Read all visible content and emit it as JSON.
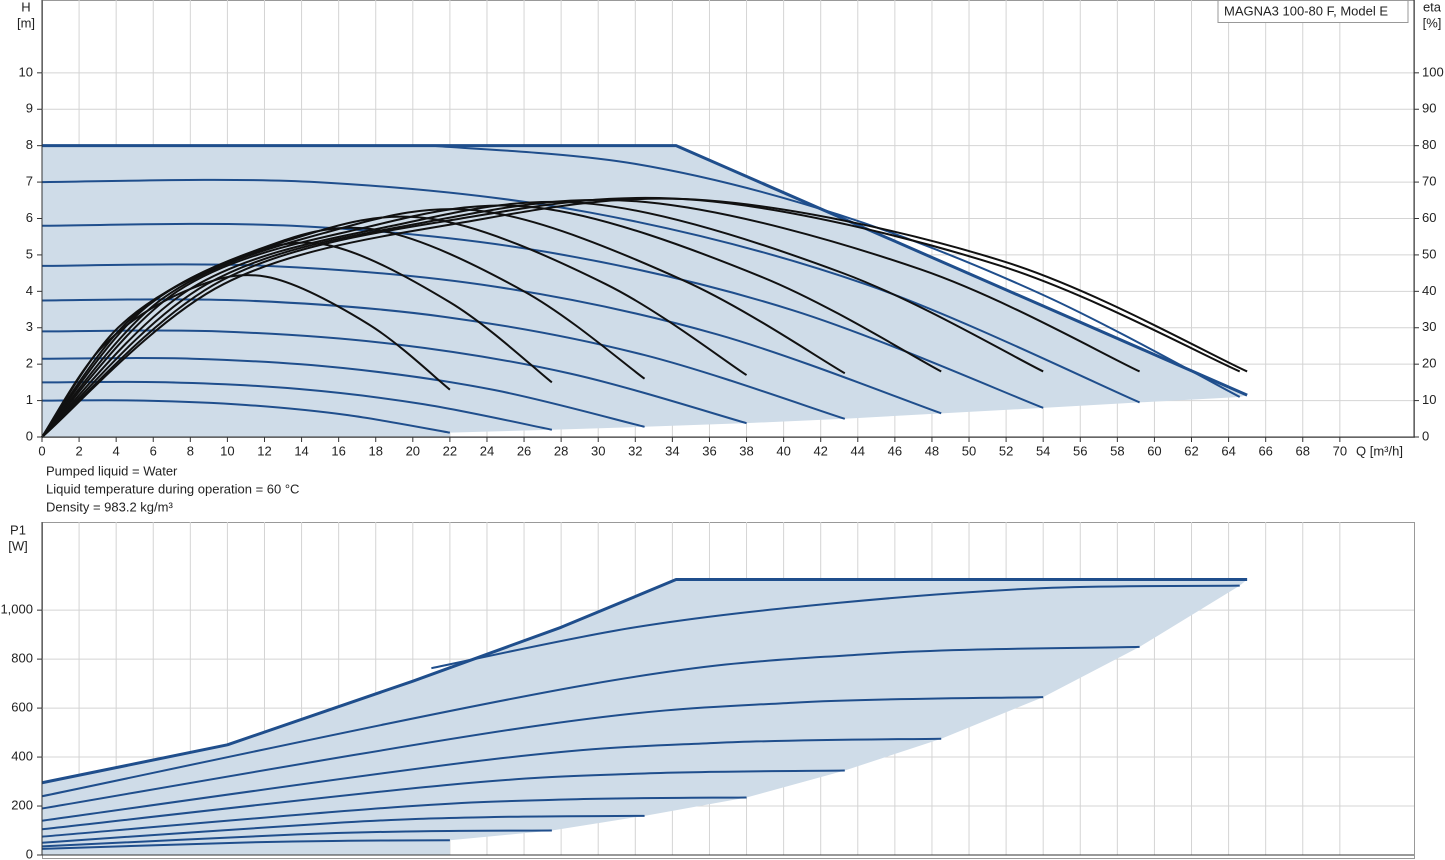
{
  "chart_data": [
    {
      "type": "line",
      "title": "MAGNA3 100-80 F, Model E",
      "ylabel": "H",
      "yunit": "[m]",
      "y2label": "eta",
      "y2unit": "[%]",
      "xlabel": "Q [m³/h]",
      "notes": [
        "Pumped liquid = Water",
        "Liquid temperature during operation = 60 °C",
        "Density = 983.2 kg/m³"
      ],
      "xlim": [
        0,
        74
      ],
      "ylim": [
        0,
        12
      ],
      "y2lim": [
        0,
        120
      ],
      "xticks": [
        0,
        2,
        4,
        6,
        8,
        10,
        12,
        14,
        16,
        18,
        20,
        22,
        24,
        26,
        28,
        30,
        32,
        34,
        36,
        38,
        40,
        42,
        44,
        46,
        48,
        50,
        52,
        54,
        56,
        58,
        60,
        62,
        64,
        66,
        68,
        70
      ],
      "yticks": [
        0,
        1,
        2,
        3,
        4,
        5,
        6,
        7,
        8,
        9,
        10
      ],
      "y2ticks": [
        0,
        10,
        20,
        30,
        40,
        50,
        60,
        70,
        80,
        90,
        100
      ],
      "grid": true,
      "fill_color": "#cfdce8",
      "series": [
        {
          "color": "#1f4e8c",
          "x": [
            0,
            34.2,
            65
          ],
          "values": [
            8,
            8,
            1.15
          ]
        },
        {
          "color": "#1f4e8c",
          "x": [
            21,
            32,
            43,
            54,
            64.6
          ],
          "values": [
            8,
            7.5,
            6.1,
            3.9,
            1.1
          ]
        },
        {
          "color": "#1f4e8c",
          "x": [
            0,
            14.8,
            29.6,
            44.4,
            59.2
          ],
          "values": [
            7,
            7,
            6.16,
            4.2,
            0.95
          ]
        },
        {
          "color": "#1f4e8c",
          "x": [
            0,
            13.5,
            27,
            40.5,
            54
          ],
          "values": [
            5.8,
            5.8,
            5.1,
            3.48,
            0.8
          ]
        },
        {
          "color": "#1f4e8c",
          "x": [
            0,
            12.1,
            24.3,
            36.4,
            48.5
          ],
          "values": [
            4.7,
            4.7,
            4.14,
            2.82,
            0.65
          ]
        },
        {
          "color": "#1f4e8c",
          "x": [
            0,
            10.8,
            21.7,
            32.5,
            43.3
          ],
          "values": [
            3.75,
            3.75,
            3.3,
            2.25,
            0.5
          ]
        },
        {
          "color": "#1f4e8c",
          "x": [
            0,
            9.5,
            19,
            28.5,
            38
          ],
          "values": [
            2.9,
            2.9,
            2.55,
            1.74,
            0.38
          ]
        },
        {
          "color": "#1f4e8c",
          "x": [
            0,
            8.1,
            16.3,
            24.4,
            32.5
          ],
          "values": [
            2.15,
            2.15,
            1.89,
            1.29,
            0.28
          ]
        },
        {
          "color": "#1f4e8c",
          "x": [
            0,
            6.9,
            13.8,
            20.6,
            27.5
          ],
          "values": [
            1.5,
            1.5,
            1.32,
            0.9,
            0.2
          ]
        },
        {
          "color": "#1f4e8c",
          "x": [
            0,
            5.5,
            11,
            16.5,
            22
          ],
          "values": [
            1,
            1,
            0.88,
            0.6,
            0.12
          ]
        },
        {
          "color": "#111111",
          "axis": "y2",
          "x": [
            0,
            9.8,
            22.8,
            35.8,
            52,
            65
          ],
          "values": [
            0,
            42,
            59,
            65,
            48,
            18
          ]
        },
        {
          "color": "#111111",
          "axis": "y2",
          "x": [
            0,
            9.7,
            22.6,
            35.5,
            51.7,
            64.6
          ],
          "values": [
            0,
            43,
            60,
            65,
            47,
            18
          ]
        },
        {
          "color": "#111111",
          "axis": "y2",
          "x": [
            0,
            8.9,
            20.7,
            32.6,
            47.4,
            59.2
          ],
          "values": [
            0,
            42,
            59,
            64.5,
            46,
            18
          ]
        },
        {
          "color": "#111111",
          "axis": "y2",
          "x": [
            0,
            8.1,
            18.9,
            29.7,
            43.2,
            54
          ],
          "values": [
            0,
            41,
            58,
            64,
            45,
            18
          ]
        },
        {
          "color": "#111111",
          "axis": "y2",
          "x": [
            0,
            7.3,
            17,
            26.7,
            38.8,
            48.5
          ],
          "values": [
            0,
            40,
            57,
            63,
            44,
            18
          ]
        },
        {
          "color": "#111111",
          "axis": "y2",
          "x": [
            0,
            6.5,
            15.2,
            23.8,
            34.6,
            43.3
          ],
          "values": [
            0,
            38,
            56,
            62,
            43,
            17.5
          ]
        },
        {
          "color": "#111111",
          "axis": "y2",
          "x": [
            0,
            5.7,
            13.3,
            20.9,
            30.4,
            38
          ],
          "values": [
            0,
            36,
            54,
            60,
            42,
            17
          ]
        },
        {
          "color": "#111111",
          "axis": "y2",
          "x": [
            0,
            4.9,
            11.4,
            17.9,
            26,
            32.5
          ],
          "values": [
            0,
            33,
            51,
            57,
            40,
            16
          ]
        },
        {
          "color": "#111111",
          "axis": "y2",
          "x": [
            0,
            4.1,
            9.6,
            15.1,
            22,
            27.5
          ],
          "values": [
            0,
            30,
            47,
            53,
            37,
            15
          ]
        },
        {
          "color": "#111111",
          "axis": "y2",
          "x": [
            0,
            3.3,
            7.7,
            12.1,
            17.6,
            22
          ],
          "values": [
            0,
            25,
            40,
            44,
            31,
            13
          ]
        }
      ]
    },
    {
      "type": "line",
      "ylabel": "P1",
      "yunit": "[W]",
      "xlim": [
        0,
        74
      ],
      "ylim": [
        0,
        1360
      ],
      "yticks": [
        0,
        200,
        400,
        600,
        800,
        {
          "value": 1000,
          "label": "1,000"
        }
      ],
      "grid": true,
      "fill_color": "#cfdce8",
      "series": [
        {
          "color": "#1f4e8c",
          "x": [
            0,
            10,
            20,
            28,
            34.2,
            65
          ],
          "values": [
            295,
            450,
            710,
            930,
            1125,
            1125
          ]
        },
        {
          "color": "#1f4e8c",
          "x": [
            21,
            32,
            43,
            54,
            64.6
          ],
          "values": [
            763,
            930,
            1030,
            1090,
            1100
          ]
        },
        {
          "color": "#1f4e8c",
          "x": [
            0,
            29.6,
            44.4,
            59.2
          ],
          "values": [
            240,
            698,
            820,
            850
          ]
        },
        {
          "color": "#1f4e8c",
          "x": [
            0,
            27,
            40.5,
            54
          ],
          "values": [
            190,
            531,
            622,
            645
          ]
        },
        {
          "color": "#1f4e8c",
          "x": [
            0,
            24.3,
            36.4,
            48.5
          ],
          "values": [
            140,
            391,
            458,
            475
          ]
        },
        {
          "color": "#1f4e8c",
          "x": [
            0,
            21.7,
            32.5,
            43.3
          ],
          "values": [
            105,
            285,
            333,
            345
          ]
        },
        {
          "color": "#1f4e8c",
          "x": [
            0,
            19,
            28.5,
            38
          ],
          "values": [
            75,
            195,
            227,
            235
          ]
        },
        {
          "color": "#1f4e8c",
          "x": [
            0,
            16.3,
            24.4,
            32.5
          ],
          "values": [
            50,
            133,
            155,
            160
          ]
        },
        {
          "color": "#1f4e8c",
          "x": [
            0,
            13.8,
            20.6,
            27.5
          ],
          "values": [
            35,
            84,
            97,
            100
          ]
        },
        {
          "color": "#1f4e8c",
          "x": [
            0,
            11,
            16.5,
            22
          ],
          "values": [
            25,
            51,
            58,
            60
          ]
        }
      ]
    }
  ]
}
